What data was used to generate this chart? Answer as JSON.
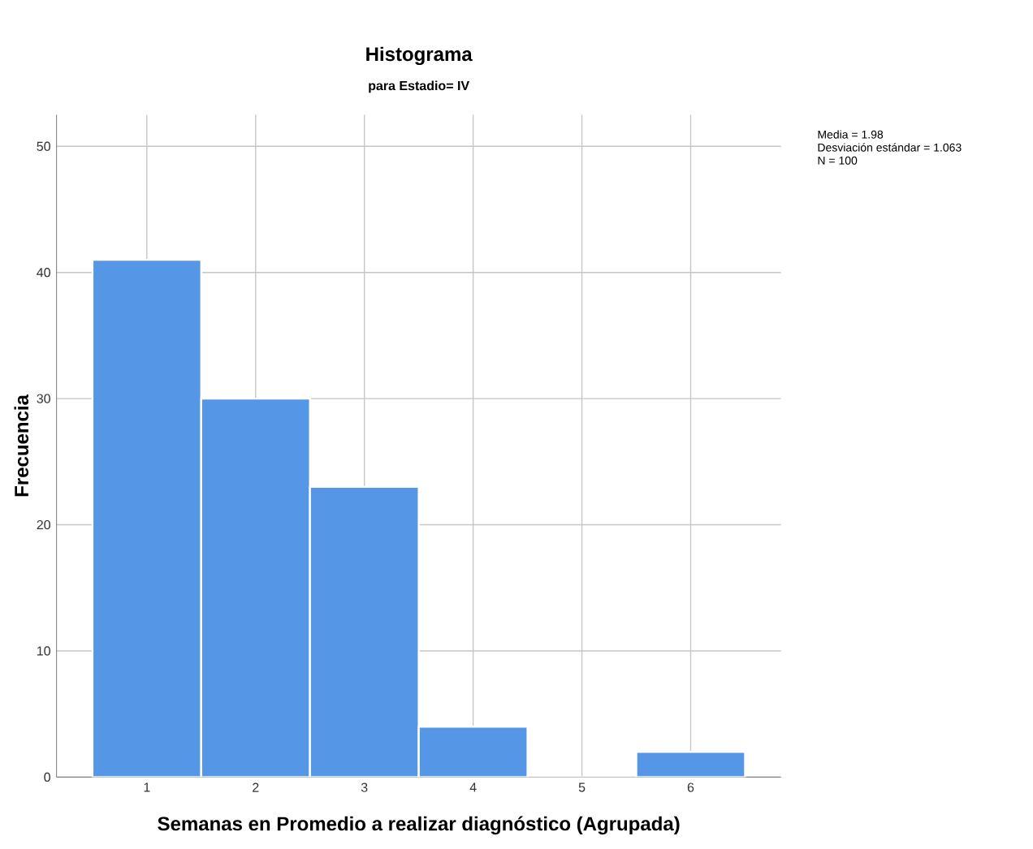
{
  "chart_data": {
    "type": "histogram",
    "title": "Histograma",
    "subtitle": "para Estadio= IV",
    "xlabel": "Semanas en Promedio a realizar diagnóstico (Agrupada)",
    "ylabel": "Frecuencia",
    "bins": [
      0.5,
      1.5,
      2.5,
      3.5,
      4.5,
      5.5,
      6.5
    ],
    "values": [
      41,
      30,
      23,
      4,
      0,
      2
    ],
    "color": "#5596e6",
    "xlim": [
      0.17,
      6.83
    ],
    "ylim": [
      0,
      52.5
    ],
    "xticks": [
      1,
      2,
      3,
      4,
      5,
      6
    ],
    "yticks": [
      0,
      10,
      20,
      30,
      40,
      50
    ],
    "grid": true,
    "annotations": [
      "Media = 1.98",
      "Desviación estándar = 1.063",
      "N = 100"
    ]
  }
}
